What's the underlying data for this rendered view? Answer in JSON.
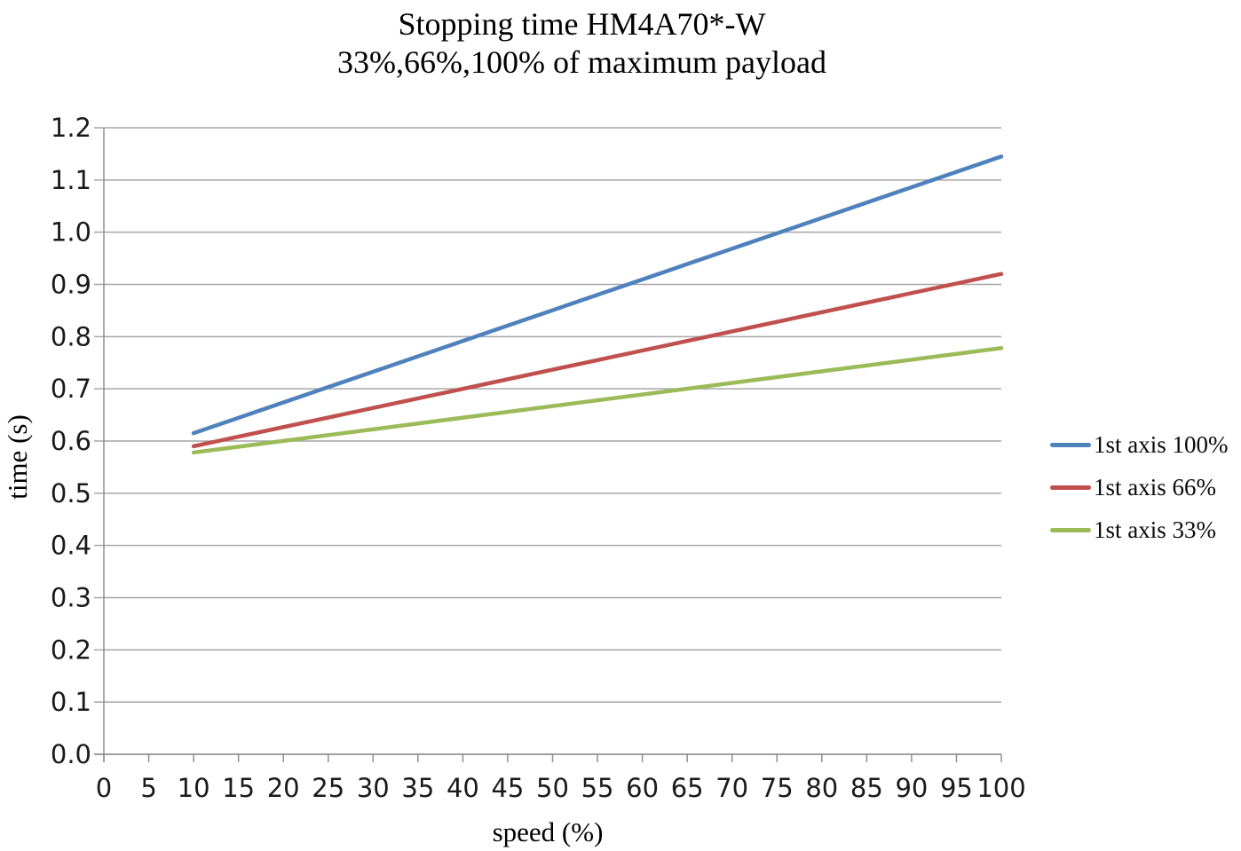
{
  "chart_data": {
    "type": "line",
    "title": "Stopping time HM4A70*-W",
    "subtitle": "33%,66%,100% of maximum payload",
    "xlabel": "speed (%)",
    "ylabel": "time (s)",
    "xlim": [
      0,
      100
    ],
    "ylim": [
      0.0,
      1.2
    ],
    "x_ticks": [
      0,
      5,
      10,
      15,
      20,
      25,
      30,
      35,
      40,
      45,
      50,
      55,
      60,
      65,
      70,
      75,
      80,
      85,
      90,
      95,
      100
    ],
    "y_ticks": [
      "0.0",
      "0.1",
      "0.2",
      "0.3",
      "0.4",
      "0.5",
      "0.6",
      "0.7",
      "0.8",
      "0.9",
      "1.0",
      "1.1",
      "1.2"
    ],
    "grid": "horizontal-only",
    "legend_position": "right",
    "background_color": "#ffffff",
    "grid_color": "#a6a6a6",
    "axis_color": "#8f8f8f",
    "series": [
      {
        "name": "1st axis 100%",
        "color": "#4F81BD",
        "points": [
          [
            10,
            0.615
          ],
          [
            100,
            1.145
          ]
        ]
      },
      {
        "name": "1st axis 66%",
        "color": "#C0504D",
        "points": [
          [
            10,
            0.59
          ],
          [
            100,
            0.92
          ]
        ]
      },
      {
        "name": "1st axis 33%",
        "color": "#9BBB59",
        "points": [
          [
            10,
            0.578
          ],
          [
            100,
            0.778
          ]
        ]
      }
    ]
  }
}
